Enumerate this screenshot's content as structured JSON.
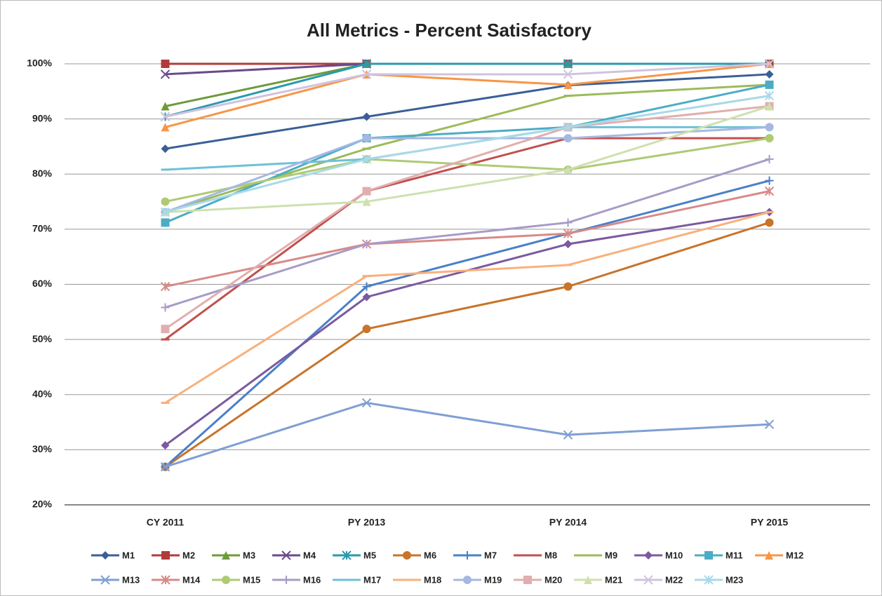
{
  "chart_data": {
    "type": "line",
    "title": "All Metrics - Percent Satisfactory",
    "categories": [
      "CY 2011",
      "PY 2013",
      "PY 2014",
      "PY 2015"
    ],
    "ylim": [
      20,
      100
    ],
    "yticks": [
      {
        "value": 20,
        "label": "20%"
      },
      {
        "value": 30,
        "label": "30%"
      },
      {
        "value": 40,
        "label": "40%"
      },
      {
        "value": 50,
        "label": "50%"
      },
      {
        "value": 60,
        "label": "60%"
      },
      {
        "value": 70,
        "label": "70%"
      },
      {
        "value": 80,
        "label": "80%"
      },
      {
        "value": 90,
        "label": "90%"
      },
      {
        "value": 100,
        "label": "100%"
      }
    ],
    "grid": true,
    "legend": "bottom",
    "series": [
      {
        "name": "M1",
        "color": "#3a5f97",
        "marker": "diamond",
        "values": [
          84.6,
          90.4,
          96.1,
          98.1
        ]
      },
      {
        "name": "M2",
        "color": "#b03b3b",
        "marker": "square",
        "values": [
          100,
          100,
          100,
          100
        ]
      },
      {
        "name": "M3",
        "color": "#6e9a3a",
        "marker": "triangle",
        "values": [
          92.3,
          100,
          100,
          100
        ]
      },
      {
        "name": "M4",
        "color": "#6a4a8c",
        "marker": "x",
        "values": [
          98.1,
          100,
          100,
          100
        ]
      },
      {
        "name": "M5",
        "color": "#2a9aad",
        "marker": "star",
        "values": [
          90.4,
          100,
          100,
          100
        ]
      },
      {
        "name": "M6",
        "color": "#c8742a",
        "marker": "circle",
        "values": [
          26.9,
          51.9,
          59.6,
          71.2
        ]
      },
      {
        "name": "M7",
        "color": "#4a7fc8",
        "marker": "plus",
        "values": [
          26.9,
          59.6,
          69.2,
          78.8
        ]
      },
      {
        "name": "M8",
        "color": "#c0504d",
        "marker": "dash",
        "values": [
          50.0,
          76.9,
          86.5,
          86.5
        ]
      },
      {
        "name": "M9",
        "color": "#9bbb59",
        "marker": "dash",
        "values": [
          73.1,
          84.6,
          94.2,
          96.2
        ]
      },
      {
        "name": "M10",
        "color": "#7a5aa0",
        "marker": "diamond",
        "values": [
          30.8,
          57.7,
          67.3,
          73.1
        ]
      },
      {
        "name": "M11",
        "color": "#4bacc6",
        "marker": "square",
        "values": [
          71.2,
          86.5,
          88.5,
          96.2
        ]
      },
      {
        "name": "M12",
        "color": "#f79646",
        "marker": "triangle",
        "values": [
          88.5,
          98.1,
          96.2,
          100
        ]
      },
      {
        "name": "M13",
        "color": "#7f9fd4",
        "marker": "x",
        "values": [
          26.9,
          38.5,
          32.7,
          34.6
        ]
      },
      {
        "name": "M14",
        "color": "#d88a88",
        "marker": "star",
        "values": [
          59.6,
          67.3,
          69.2,
          76.9
        ]
      },
      {
        "name": "M15",
        "color": "#aecb74",
        "marker": "circle",
        "values": [
          75.0,
          82.7,
          80.8,
          86.5
        ]
      },
      {
        "name": "M16",
        "color": "#a89bc8",
        "marker": "plus",
        "values": [
          55.8,
          67.3,
          71.2,
          82.7
        ]
      },
      {
        "name": "M17",
        "color": "#6fc0d8",
        "marker": "dash",
        "values": [
          80.8,
          82.7,
          88.5,
          88.5
        ]
      },
      {
        "name": "M18",
        "color": "#f9b07c",
        "marker": "dash",
        "values": [
          38.5,
          61.5,
          63.5,
          73.1
        ]
      },
      {
        "name": "M19",
        "color": "#a6b8e0",
        "marker": "circle",
        "values": [
          73.1,
          86.5,
          86.5,
          88.5
        ]
      },
      {
        "name": "M20",
        "color": "#e0aeae",
        "marker": "square",
        "values": [
          51.9,
          76.9,
          88.5,
          92.3
        ]
      },
      {
        "name": "M21",
        "color": "#cfe0ae",
        "marker": "triangle",
        "values": [
          73.1,
          75.0,
          80.8,
          92.3
        ]
      },
      {
        "name": "M22",
        "color": "#cfc3de",
        "marker": "x",
        "values": [
          90.4,
          98.1,
          98.1,
          100
        ]
      },
      {
        "name": "M23",
        "color": "#a9d9e8",
        "marker": "star",
        "values": [
          73.1,
          82.7,
          88.5,
          94.2
        ]
      }
    ]
  }
}
